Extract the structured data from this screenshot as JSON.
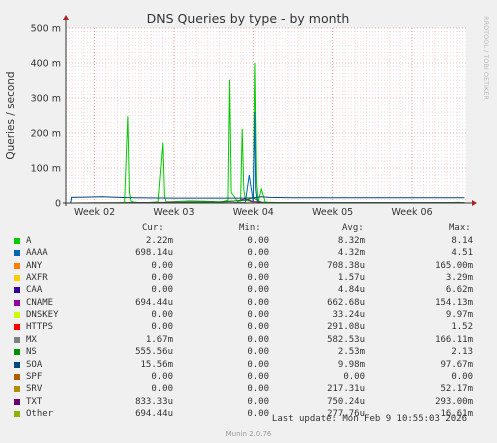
{
  "chart_data": {
    "type": "line",
    "title": "DNS Queries by type - by month",
    "ylabel": "Queries / second",
    "watermark": "RRDTOOL / TOBI OETIKER",
    "y_ticks": [
      "0",
      "100 m",
      "200 m",
      "300 m",
      "400 m",
      "500 m"
    ],
    "y_tick_values": [
      0,
      100,
      200,
      300,
      400,
      500
    ],
    "ylim": [
      0,
      500
    ],
    "x_ticks": [
      "Week 02",
      "Week 03",
      "Week 04",
      "Week 05",
      "Week 06"
    ],
    "x_tick_values": [
      2,
      3,
      4,
      5,
      6
    ],
    "xlim": [
      1.64,
      6.68
    ],
    "grid": true,
    "series": [
      {
        "name": "A",
        "color": "#00cc00",
        "x": [
          2.3,
          2.38,
          2.42,
          2.44,
          2.46,
          2.52,
          2.6,
          2.8,
          2.86,
          2.88,
          2.9,
          3.0,
          3.2,
          3.4,
          3.6,
          3.68,
          3.7,
          3.72,
          3.8,
          3.84,
          3.86,
          3.88,
          3.9,
          3.96,
          4.0,
          4.02,
          4.04,
          4.06,
          4.1,
          4.15,
          4.3,
          4.6,
          5.0,
          5.5,
          6.0,
          6.4,
          6.6
        ],
        "y": [
          0,
          2,
          248,
          30,
          4,
          2,
          0,
          3,
          172,
          20,
          3,
          4,
          6,
          5,
          3,
          8,
          352,
          30,
          5,
          6,
          212,
          40,
          8,
          5,
          2,
          400,
          60,
          3,
          40,
          2,
          1,
          1,
          0,
          1,
          0,
          1,
          2
        ]
      },
      {
        "name": "AAAA",
        "color": "#0066b3",
        "x": [
          1.7,
          2.3,
          2.35,
          2.5,
          3.5,
          3.7,
          3.9,
          3.95,
          4.0,
          4.02,
          4.03,
          4.05,
          4.1,
          4.2,
          5.0,
          6.0,
          6.66
        ],
        "y": [
          0,
          0,
          0,
          0.5,
          0.5,
          1,
          2,
          80,
          5,
          260,
          40,
          2,
          1,
          0.5,
          0.5,
          0.5,
          0.5
        ]
      },
      {
        "name": "ANY",
        "color": "#ff8000",
        "x": [
          1.7,
          2.5,
          3.5,
          4.0,
          4.5,
          5.0,
          5.5,
          6.0,
          6.66
        ],
        "y": [
          0,
          0.3,
          0.2,
          0.5,
          0.2,
          0.1,
          0.1,
          0.1,
          0.1
        ]
      },
      {
        "name": "AXFR",
        "color": "#ffcc00",
        "x": [
          1.7,
          6.66
        ],
        "y": [
          0,
          0
        ]
      },
      {
        "name": "CAA",
        "color": "#330099",
        "x": [
          1.7,
          6.66
        ],
        "y": [
          0,
          0
        ]
      },
      {
        "name": "CNAME",
        "color": "#990099",
        "x": [
          1.7,
          2.4,
          3.0,
          3.6,
          3.8,
          3.9,
          4.0,
          4.2,
          5.0,
          6.66
        ],
        "y": [
          0,
          1,
          2,
          3,
          6,
          12,
          4,
          1,
          0.5,
          0.5
        ]
      },
      {
        "name": "DNSKEY",
        "color": "#ccff00",
        "x": [
          1.7,
          6.66
        ],
        "y": [
          0,
          0
        ]
      },
      {
        "name": "HTTPS",
        "color": "#ff0000",
        "x": [
          1.7,
          6.66
        ],
        "y": [
          0,
          0
        ]
      },
      {
        "name": "MX",
        "color": "#808080",
        "x": [
          1.7,
          6.66
        ],
        "y": [
          0,
          0
        ]
      },
      {
        "name": "NS",
        "color": "#008f00",
        "x": [
          1.7,
          2.3,
          2.5,
          3.0,
          3.5,
          3.9,
          4.0,
          4.1,
          4.5,
          5.0,
          6.0,
          6.66
        ],
        "y": [
          0,
          0.5,
          1,
          1,
          2,
          8,
          15,
          2,
          1,
          0.5,
          0.5,
          0.5
        ]
      },
      {
        "name": "SOA",
        "color": "#00487d",
        "x": [
          1.7,
          1.71,
          1.9,
          2.1,
          2.3,
          2.5,
          3.0,
          3.5,
          3.9,
          4.0,
          4.1,
          4.2,
          4.5,
          5.0,
          6.0,
          6.66
        ],
        "y": [
          0,
          16,
          17,
          18,
          16,
          15,
          14,
          14,
          14,
          15,
          18,
          16,
          15,
          15,
          15,
          15
        ]
      },
      {
        "name": "SPF",
        "color": "#b35a00",
        "x": [
          1.7,
          6.66
        ],
        "y": [
          0,
          0
        ]
      },
      {
        "name": "SRV",
        "color": "#b38f00",
        "x": [
          1.7,
          6.66
        ],
        "y": [
          0,
          0
        ]
      },
      {
        "name": "TXT",
        "color": "#6b006b",
        "x": [
          1.7,
          6.66
        ],
        "y": [
          0,
          0
        ]
      },
      {
        "name": "Other",
        "color": "#8fb300",
        "x": [
          1.7,
          6.66
        ],
        "y": [
          0,
          0
        ]
      }
    ]
  },
  "legend": {
    "headers": {
      "cur": "Cur:",
      "min": "Min:",
      "avg": "Avg:",
      "max": "Max:"
    },
    "rows": [
      {
        "name": "A",
        "color": "#00cc00",
        "cur": "2.22m",
        "min": "0.00",
        "avg": "8.32m",
        "max": "8.14"
      },
      {
        "name": "AAAA",
        "color": "#0066b3",
        "cur": "698.14u",
        "min": "0.00",
        "avg": "4.32m",
        "max": "4.51"
      },
      {
        "name": "ANY",
        "color": "#ff8000",
        "cur": "0.00",
        "min": "0.00",
        "avg": "708.38u",
        "max": "165.00m"
      },
      {
        "name": "AXFR",
        "color": "#ffcc00",
        "cur": "0.00",
        "min": "0.00",
        "avg": "1.57u",
        "max": "3.29m"
      },
      {
        "name": "CAA",
        "color": "#330099",
        "cur": "0.00",
        "min": "0.00",
        "avg": "4.84u",
        "max": "6.62m"
      },
      {
        "name": "CNAME",
        "color": "#990099",
        "cur": "694.44u",
        "min": "0.00",
        "avg": "662.68u",
        "max": "154.13m"
      },
      {
        "name": "DNSKEY",
        "color": "#ccff00",
        "cur": "0.00",
        "min": "0.00",
        "avg": "33.24u",
        "max": "9.97m"
      },
      {
        "name": "HTTPS",
        "color": "#ff0000",
        "cur": "0.00",
        "min": "0.00",
        "avg": "291.08u",
        "max": "1.52"
      },
      {
        "name": "MX",
        "color": "#808080",
        "cur": "1.67m",
        "min": "0.00",
        "avg": "582.53u",
        "max": "166.11m"
      },
      {
        "name": "NS",
        "color": "#008f00",
        "cur": "555.56u",
        "min": "0.00",
        "avg": "2.53m",
        "max": "2.13"
      },
      {
        "name": "SOA",
        "color": "#00487d",
        "cur": "15.56m",
        "min": "0.00",
        "avg": "9.98m",
        "max": "97.67m"
      },
      {
        "name": "SPF",
        "color": "#b35a00",
        "cur": "0.00",
        "min": "0.00",
        "avg": "0.00",
        "max": "0.00"
      },
      {
        "name": "SRV",
        "color": "#b38f00",
        "cur": "0.00",
        "min": "0.00",
        "avg": "217.31u",
        "max": "52.17m"
      },
      {
        "name": "TXT",
        "color": "#6b006b",
        "cur": "833.33u",
        "min": "0.00",
        "avg": "750.24u",
        "max": "293.00m"
      },
      {
        "name": "Other",
        "color": "#8fb300",
        "cur": "694.44u",
        "min": "0.00",
        "avg": "277.76u",
        "max": "16.61m"
      }
    ]
  },
  "footer": {
    "last_update": "Last update: Mon Feb  9 10:55:03 2026",
    "munin": "Munin 2.0.76"
  }
}
